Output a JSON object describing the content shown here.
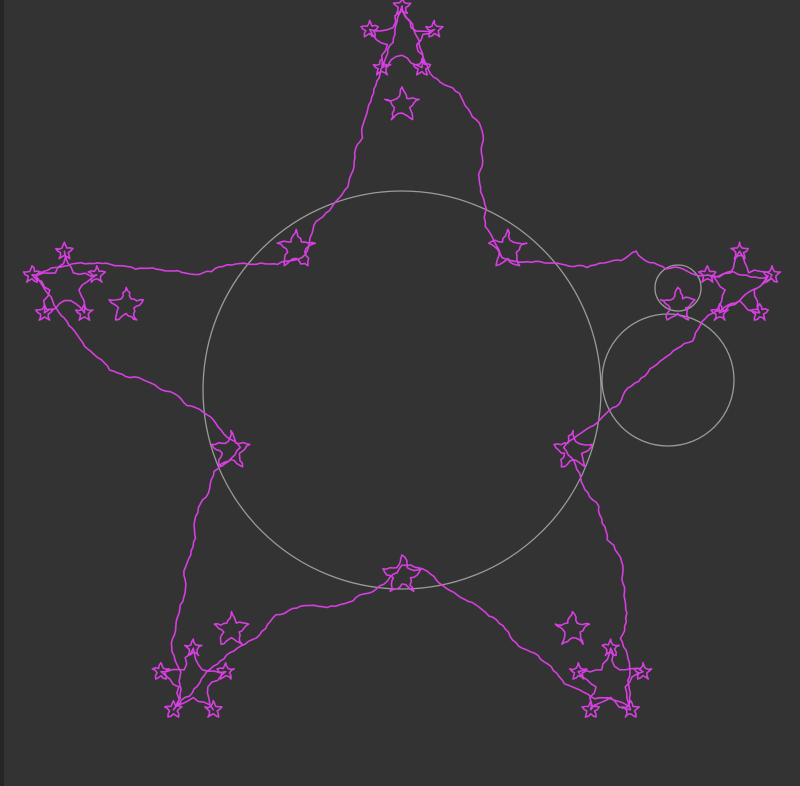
{
  "canvas": {
    "background_color": "#333333",
    "left_edge_color": "#262626"
  },
  "figure": {
    "curve": {
      "name": "fractal-star-curve",
      "color": "#d63fe0",
      "symmetry": "5-fold"
    },
    "guide_circles": {
      "color": "#9a9a9a",
      "count": 3
    }
  }
}
